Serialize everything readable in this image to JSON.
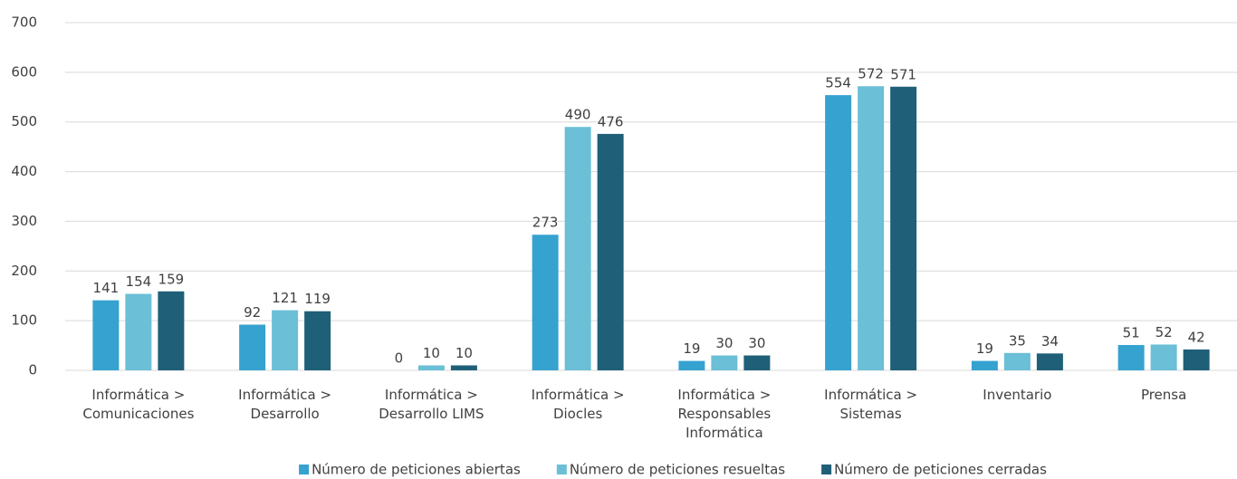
{
  "chart_data": {
    "type": "bar",
    "categories": [
      "Informática > Comunicaciones",
      "Informática > Desarrollo",
      "Informática > Desarrollo LIMS",
      "Informática > Diocles",
      "Informática > Responsables Informática",
      "Informática > Sistemas",
      "Inventario",
      "Prensa"
    ],
    "series": [
      {
        "name": "Número de peticiones abiertas",
        "color": "#36a2d0",
        "values": [
          141,
          92,
          0,
          273,
          19,
          554,
          19,
          51
        ]
      },
      {
        "name": "Número de peticiones resueltas",
        "color": "#6bbfd6",
        "values": [
          154,
          121,
          10,
          490,
          30,
          572,
          35,
          52
        ]
      },
      {
        "name": "Número de peticiones cerradas",
        "color": "#1f5f78",
        "values": [
          159,
          119,
          10,
          476,
          30,
          571,
          34,
          42
        ]
      }
    ],
    "ylim": [
      0,
      700
    ],
    "yticks": [
      0,
      100,
      200,
      300,
      400,
      500,
      600,
      700
    ],
    "grid": true,
    "legend": "bottom"
  }
}
